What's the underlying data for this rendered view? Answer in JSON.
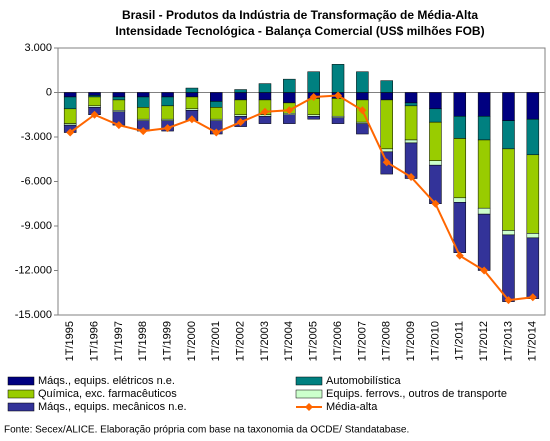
{
  "chart_data": {
    "type": "bar",
    "stacked": true,
    "title": "Brasil - Produtos da Indústria de Transformação de Média-Alta",
    "subtitle": "Intensidade Tecnológica - Balança Comercial (US$ milhões FOB)",
    "source": "Fonte: Secex/ALICE. Elaboração própria com base na taxonomia da OCDE/ Standatabase.",
    "categories": [
      "1T/1995",
      "1T/1996",
      "1T/1997",
      "1T/1998",
      "1T/1999",
      "1T/2000",
      "1T/2001",
      "1T/2002",
      "1T/2003",
      "1T/2004",
      "1T/2005",
      "1T/2006",
      "1T/2007",
      "1T/2008",
      "1T/2009",
      "1T/2010",
      "1T/2011",
      "1T/2012",
      "1T/2013",
      "1T/2014"
    ],
    "series": [
      {
        "name": "Máqs., equips. elétricos n.e.",
        "color": "#000080",
        "type": "bar",
        "values": [
          -300,
          -200,
          -300,
          -300,
          -300,
          -300,
          -600,
          -500,
          -500,
          -700,
          -400,
          -400,
          -500,
          -500,
          -700,
          -1100,
          -1600,
          -1600,
          -1900,
          -1800
        ]
      },
      {
        "name": "Automobilística",
        "color": "#008080",
        "type": "bar",
        "values": [
          -800,
          -100,
          -200,
          -700,
          -600,
          300,
          -400,
          200,
          600,
          900,
          1400,
          1900,
          1400,
          800,
          -200,
          -900,
          -1500,
          -1600,
          -1900,
          -2400
        ]
      },
      {
        "name": "Química, exc. farmacêuticos",
        "color": "#99cc00",
        "type": "bar",
        "values": [
          -1000,
          -600,
          -700,
          -800,
          -900,
          -800,
          -800,
          -1000,
          -1000,
          -700,
          -1100,
          -1200,
          -1500,
          -3300,
          -2300,
          -2600,
          -4000,
          -4600,
          -5500,
          -5300
        ]
      },
      {
        "name": "Equips. ferrovs., outros de transporte",
        "color": "#ccffcc",
        "type": "bar",
        "values": [
          -100,
          -100,
          -100,
          -100,
          -100,
          -100,
          -100,
          -100,
          -100,
          -100,
          -100,
          -100,
          -100,
          -200,
          -200,
          -300,
          -300,
          -400,
          -300,
          -300
        ]
      },
      {
        "name": "Máqs., equips. mecânicos n.e.",
        "color": "#333399",
        "type": "bar",
        "values": [
          -500,
          -500,
          -900,
          -700,
          -700,
          -700,
          -900,
          -700,
          -500,
          -600,
          -200,
          -400,
          -700,
          -1500,
          -2400,
          -2600,
          -3400,
          -3800,
          -4500,
          -4100
        ]
      },
      {
        "name": "Média-alta",
        "color": "#ff6600",
        "type": "line",
        "values": [
          -2700,
          -1500,
          -2200,
          -2600,
          -2400,
          -1800,
          -2700,
          -2000,
          -1300,
          -1200,
          -300,
          -200,
          -1200,
          -4700,
          -5700,
          -7500,
          -11000,
          -12000,
          -14000,
          -13800
        ]
      }
    ],
    "ylim": [
      -15000,
      3000
    ],
    "yticks": [
      {
        "value": -15000,
        "label": "-15.000"
      },
      {
        "value": -12000,
        "label": "-12.000"
      },
      {
        "value": -9000,
        "label": "-9.000"
      },
      {
        "value": -6000,
        "label": "-6.000"
      },
      {
        "value": -3000,
        "label": "-3.000"
      },
      0,
      {
        "value": 3000,
        "label": "3.000"
      }
    ],
    "grid": false
  }
}
